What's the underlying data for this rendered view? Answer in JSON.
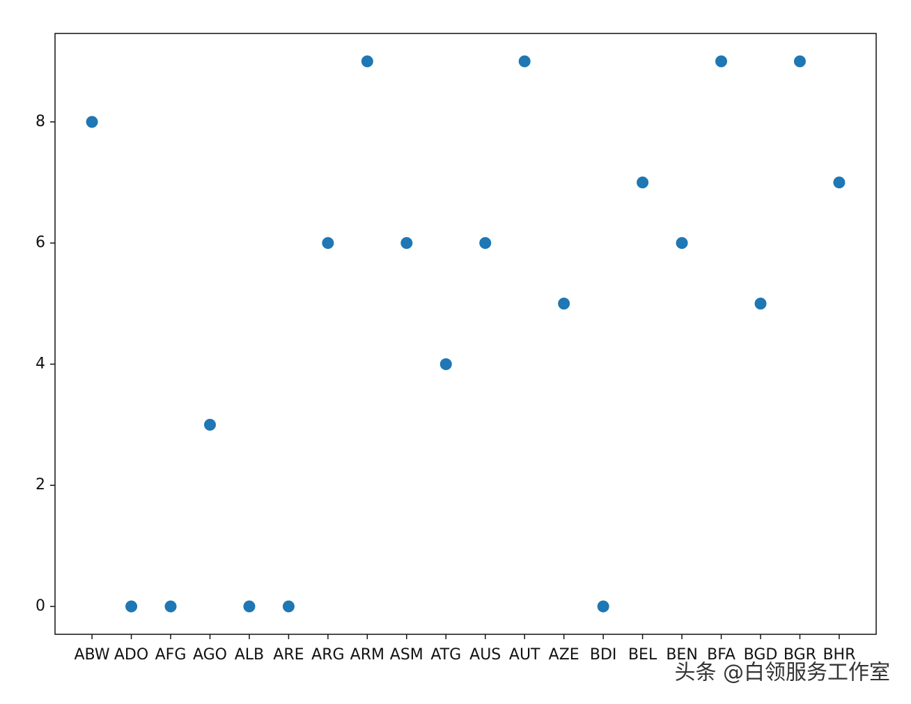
{
  "chart_data": {
    "type": "scatter",
    "categories": [
      "ABW",
      "ADO",
      "AFG",
      "AGO",
      "ALB",
      "ARE",
      "ARG",
      "ARM",
      "ASM",
      "ATG",
      "AUS",
      "AUT",
      "AZE",
      "BDI",
      "BEL",
      "BEN",
      "BFA",
      "BGD",
      "BGR",
      "BHR"
    ],
    "values": [
      8,
      0,
      0,
      3,
      0,
      0,
      6,
      9,
      6,
      4,
      6,
      9,
      5,
      0,
      7,
      6,
      9,
      5,
      9,
      7
    ],
    "color": "#1f77b4",
    "ylim": [
      -0.46,
      9.46
    ],
    "yticks": [
      0,
      2,
      4,
      6,
      8
    ],
    "grid": false,
    "watermark": "头条 @白领服务工作室"
  }
}
